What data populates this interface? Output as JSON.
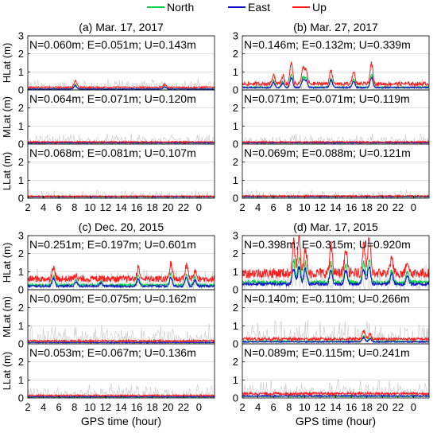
{
  "legend": [
    {
      "name": "North",
      "color": "#00cc44"
    },
    {
      "name": "East",
      "color": "#1010cc"
    },
    {
      "name": "Up",
      "color": "#ff1a1a"
    }
  ],
  "colors": {
    "background_series": "#c8c8c8"
  },
  "xlabel": "GPS time (hour)",
  "chart_data": [
    {
      "type": "line",
      "title": "(a) Mar. 17, 2017",
      "x_ticks": [
        "2",
        "4",
        "6",
        "8",
        "10",
        "12",
        "14",
        "16",
        "18",
        "20",
        "22",
        "0"
      ],
      "ylim": [
        0,
        3
      ],
      "y_ticks": [
        "0",
        "1",
        "2",
        "3"
      ],
      "rows": [
        {
          "ylabel": "HLat (m)",
          "stats": "N=0.060m; E=0.051m; U=0.143m",
          "N": 0.06,
          "E": 0.051,
          "U": 0.143,
          "spikes": [
            [
              8.1,
              0.55
            ],
            [
              19.6,
              0.35
            ]
          ]
        },
        {
          "ylabel": "MLat (m)",
          "stats": "N=0.064m; E=0.071m; U=0.120m",
          "N": 0.064,
          "E": 0.071,
          "U": 0.12,
          "spikes": []
        },
        {
          "ylabel": "LLat (m)",
          "stats": "N=0.068m; E=0.081m; U=0.107m",
          "N": 0.068,
          "E": 0.081,
          "U": 0.107,
          "spikes": []
        }
      ]
    },
    {
      "type": "line",
      "title": "(b) Mar. 27, 2017",
      "x_ticks": [
        "2",
        "4",
        "6",
        "8",
        "10",
        "12",
        "14",
        "16",
        "18",
        "20",
        "22",
        "0"
      ],
      "ylim": [
        0,
        3
      ],
      "y_ticks": [
        "0",
        "1",
        "2",
        "3"
      ],
      "rows": [
        {
          "ylabel": "HLat (m)",
          "stats": "N=0.146m; E=0.132m; U=0.339m",
          "N": 0.146,
          "E": 0.132,
          "U": 0.339,
          "spikes": [
            [
              6.0,
              0.95
            ],
            [
              7.2,
              0.8
            ],
            [
              8.3,
              1.65
            ],
            [
              9.8,
              1.3
            ],
            [
              10.2,
              1.15
            ],
            [
              13.4,
              1.2
            ],
            [
              16.3,
              1.1
            ],
            [
              18.6,
              1.6
            ]
          ]
        },
        {
          "ylabel": "MLat (m)",
          "stats": "N=0.071m; E=0.071m; U=0.119m",
          "N": 0.071,
          "E": 0.071,
          "U": 0.119,
          "spikes": []
        },
        {
          "ylabel": "LLat (m)",
          "stats": "N=0.069m; E=0.088m; U=0.121m",
          "N": 0.069,
          "E": 0.088,
          "U": 0.121,
          "spikes": []
        }
      ]
    },
    {
      "type": "line",
      "title": "(c) Dec. 20, 2015",
      "x_ticks": [
        "2",
        "4",
        "6",
        "8",
        "10",
        "12",
        "14",
        "16",
        "18",
        "20",
        "22",
        "0"
      ],
      "ylim": [
        0,
        3
      ],
      "y_ticks": [
        "0",
        "1",
        "2",
        "3"
      ],
      "rows": [
        {
          "ylabel": "HLat (m)",
          "stats": "N=0.251m; E=0.197m; U=0.601m",
          "N": 0.251,
          "E": 0.197,
          "U": 0.601,
          "spikes": [
            [
              5.3,
              1.35
            ],
            [
              8.2,
              0.85
            ],
            [
              11.4,
              0.7
            ],
            [
              16.2,
              1.3
            ],
            [
              20.4,
              1.55
            ],
            [
              22.4,
              1.45
            ],
            [
              23.5,
              1.1
            ]
          ]
        },
        {
          "ylabel": "MLat (m)",
          "stats": "N=0.090m; E=0.075m; U=0.162m",
          "N": 0.09,
          "E": 0.075,
          "U": 0.162,
          "spikes": []
        },
        {
          "ylabel": "LLat (m)",
          "stats": "N=0.053m; E=0.067m; U=0.136m",
          "N": 0.053,
          "E": 0.067,
          "U": 0.136,
          "spikes": []
        }
      ]
    },
    {
      "type": "line",
      "title": "(d) Mar. 17, 2015",
      "x_ticks": [
        "2",
        "4",
        "6",
        "8",
        "10",
        "12",
        "14",
        "16",
        "18",
        "20",
        "22",
        "0"
      ],
      "ylim": [
        0,
        3
      ],
      "y_ticks": [
        "0",
        "1",
        "2",
        "3"
      ],
      "rows": [
        {
          "ylabel": "HLat (m)",
          "stats": "N=0.398m; E=0.315m; U=0.920m",
          "N": 0.398,
          "E": 0.315,
          "U": 0.92,
          "spikes": [
            [
              8.6,
              2.8
            ],
            [
              9.3,
              3.0
            ],
            [
              10.1,
              2.6
            ],
            [
              13.4,
              2.5
            ],
            [
              15.3,
              2.4
            ],
            [
              17.6,
              2.7
            ],
            [
              18.3,
              3.0
            ],
            [
              21.2,
              1.9
            ],
            [
              23.2,
              1.7
            ]
          ]
        },
        {
          "ylabel": "MLat (m)",
          "stats": "N=0.140m; E=0.110m; U=0.266m",
          "N": 0.14,
          "E": 0.11,
          "U": 0.266,
          "spikes": [
            [
              17.6,
              0.75
            ],
            [
              18.4,
              0.55
            ]
          ]
        },
        {
          "ylabel": "LLat (m)",
          "stats": "N=0.089m; E=0.115m; U=0.241m",
          "N": 0.089,
          "E": 0.115,
          "U": 0.241,
          "spikes": []
        }
      ]
    }
  ]
}
